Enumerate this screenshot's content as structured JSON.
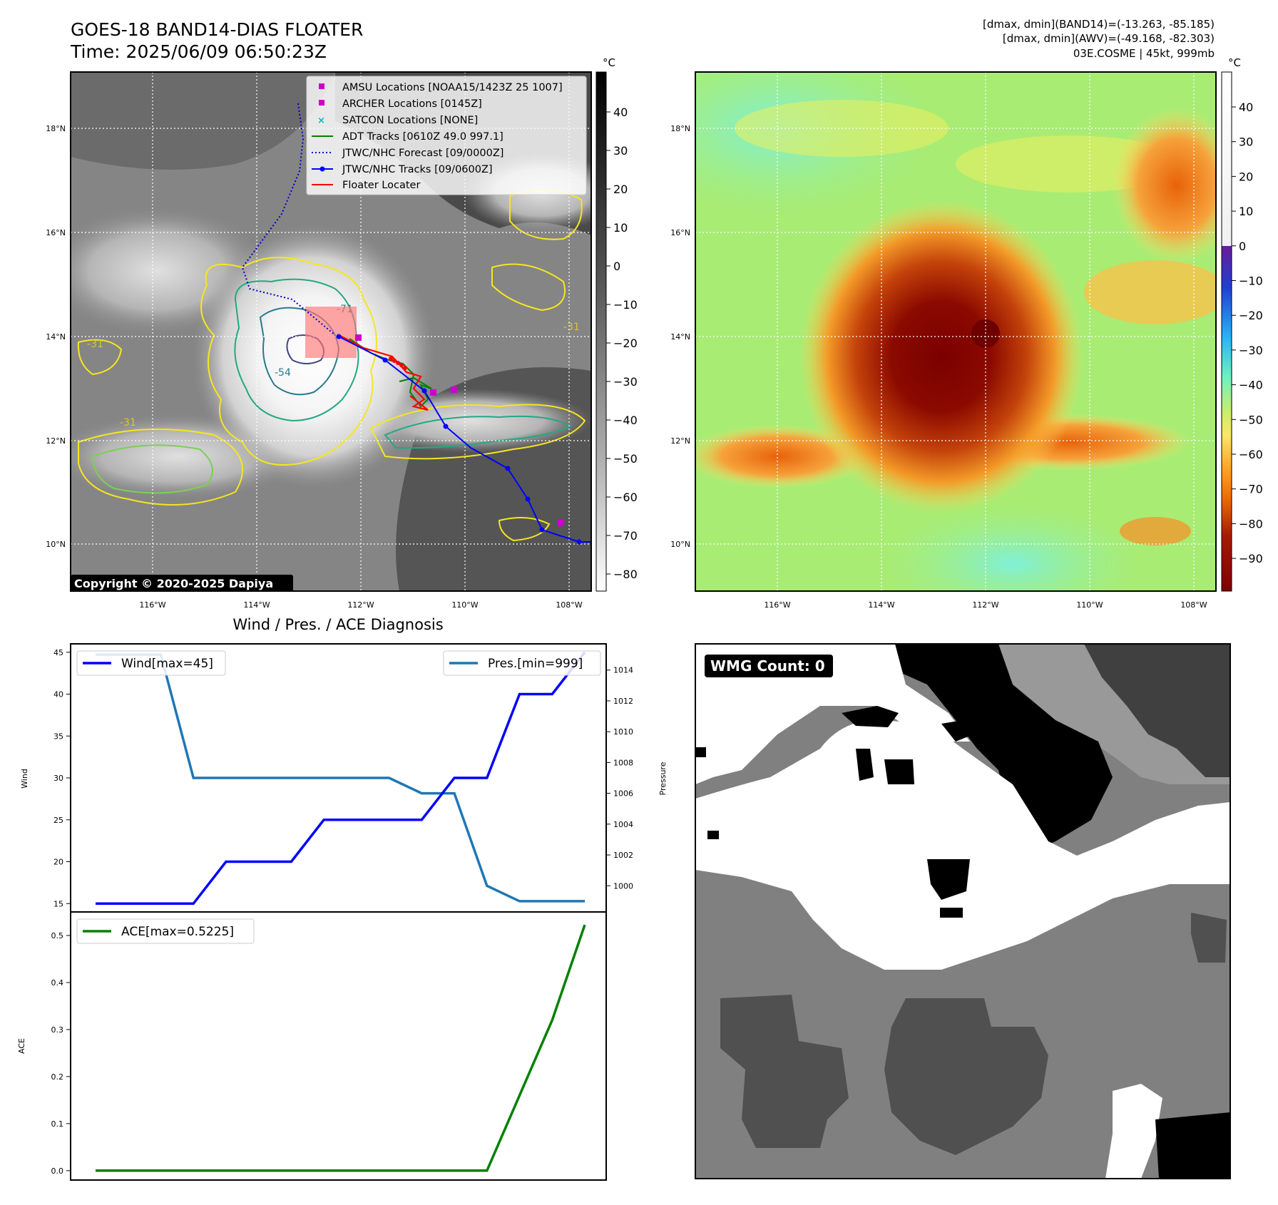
{
  "figure": {
    "title_line1": "GOES-18 BAND14-DIAS FLOATER",
    "title_line2": "Time: 2025/06/09 06:50:23Z",
    "info_line1": "[dmax, dmin](BAND14)=(-13.263, -85.185)",
    "info_line2": "[dmax, dmin](AWV)=(-49.168, -82.303)",
    "info_line3": "03E.COSME | 45kt, 999mb",
    "copyright": "Copyright © 2020-2025 Dapiya"
  },
  "colors": {
    "adt": "#008000",
    "forecast": "#0000cc",
    "track": "#0000ff",
    "floater": "#ff0000",
    "amsu": "#cc00cc",
    "satcon": "#00bbbb",
    "contour_yellow": "#f5e61e",
    "contour_lgreen": "#7ad151",
    "contour_teal": "#22a884",
    "contour_blue": "#2a788e",
    "contour_navy": "#414487",
    "pressure_line": "#1f77b4",
    "wind_line": "#0000ff",
    "ace_line": "#008000"
  },
  "map": {
    "lon_ticks": [
      "116°W",
      "114°W",
      "112°W",
      "110°W",
      "108°W"
    ],
    "lat_ticks": [
      "10°N",
      "12°N",
      "14°N",
      "16°N",
      "18°N"
    ],
    "contour_label_a": "-31",
    "contour_label_b": "-31",
    "contour_label_c": "-31",
    "contour_label_d": "-71",
    "contour_label_e": "-54"
  },
  "colorbar_ir": {
    "unit": "°C",
    "ticks": [
      "40",
      "30",
      "20",
      "10",
      "0",
      "−10",
      "−20",
      "−30",
      "−40",
      "−50",
      "−60",
      "−70",
      "−80"
    ]
  },
  "colorbar_wv": {
    "unit": "°C",
    "ticks": [
      "40",
      "30",
      "20",
      "10",
      "0",
      "−10",
      "−20",
      "−30",
      "−40",
      "−50",
      "−60",
      "−70",
      "−80",
      "−90"
    ]
  },
  "legend": {
    "amsu": "AMSU Locations [NOAA15/1423Z 25 1007]",
    "archer": "ARCHER Locations [0145Z]",
    "satcon": "SATCON Locations [NONE]",
    "adt": "ADT Tracks [0610Z 49.0 997.1]",
    "forecast": "JTWC/NHC Forecast [09/0000Z]",
    "tracks": "JTWC/NHC Tracks [09/0600Z]",
    "floater": "Floater Locater"
  },
  "diagnosis": {
    "title": "Wind / Pres. / ACE Diagnosis",
    "wind_label": "Wind",
    "pressure_label": "Pressure",
    "ace_label": "ACE",
    "wind_legend": "Wind[max=45]",
    "pres_legend": "Pres.[min=999]",
    "ace_legend": "ACE[max=0.5225]"
  },
  "wmg": {
    "label": "WMG Count: 0"
  },
  "chart_data": [
    {
      "type": "line",
      "name": "Wind",
      "x": [
        0,
        1,
        2,
        3,
        4,
        5,
        6,
        7,
        8,
        9,
        10,
        11,
        12,
        13,
        14,
        15
      ],
      "values": [
        15,
        15,
        15,
        15,
        20,
        20,
        20,
        25,
        25,
        25,
        25,
        30,
        30,
        40,
        40,
        45
      ],
      "ylim": [
        14,
        46
      ],
      "yticks": [
        15,
        20,
        25,
        30,
        35,
        40,
        45
      ]
    },
    {
      "type": "line",
      "name": "Pressure",
      "x": [
        0,
        1,
        2,
        3,
        4,
        5,
        6,
        7,
        8,
        9,
        10,
        11,
        12,
        13,
        14,
        15
      ],
      "values": [
        1015,
        1015,
        1015,
        1007,
        1007,
        1007,
        1007,
        1007,
        1007,
        1007,
        1006,
        1006,
        1000,
        999,
        999,
        999
      ],
      "ylim": [
        998.3,
        1015.7
      ],
      "yticks": [
        1000,
        1002,
        1004,
        1006,
        1008,
        1010,
        1012,
        1014
      ]
    },
    {
      "type": "line",
      "name": "ACE",
      "x": [
        0,
        1,
        2,
        3,
        4,
        5,
        6,
        7,
        8,
        9,
        10,
        11,
        12,
        13,
        14,
        15
      ],
      "values": [
        0,
        0,
        0,
        0,
        0,
        0,
        0,
        0,
        0,
        0,
        0,
        0,
        0,
        0.16,
        0.32,
        0.5225
      ],
      "ylim": [
        -0.02,
        0.55
      ],
      "yticks": [
        0.0,
        0.1,
        0.2,
        0.3,
        0.4,
        0.5
      ]
    }
  ]
}
